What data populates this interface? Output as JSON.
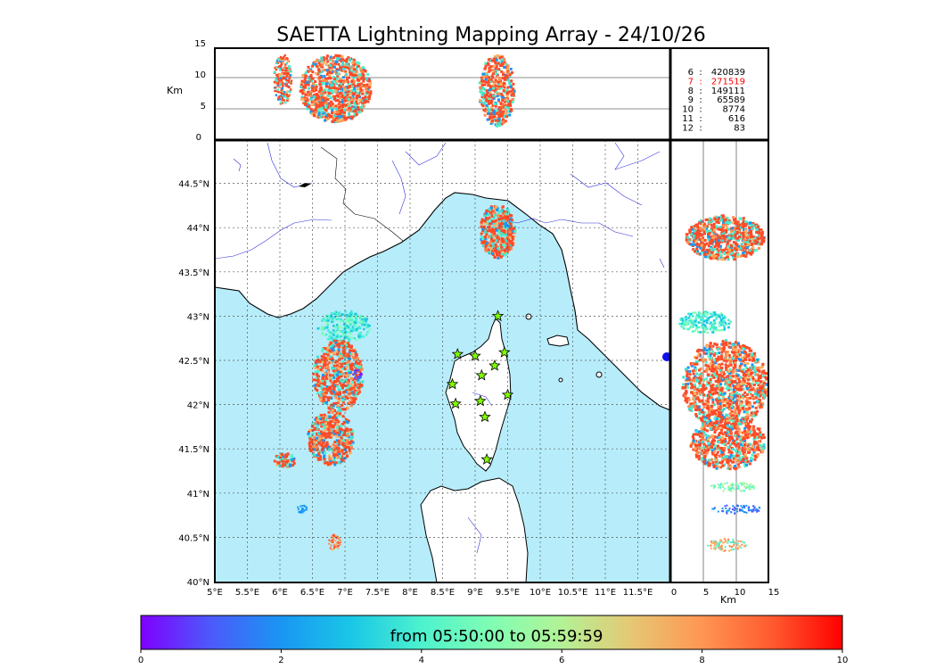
{
  "title": "SAETTA Lightning Mapping Array - 24/10/26",
  "top_panel": {
    "ylabel": "Km",
    "yticks": [
      "15",
      "10",
      "5",
      "0"
    ],
    "gridlines_km": [
      10,
      5
    ]
  },
  "right_panel": {
    "xlabel": "Km",
    "xticks": [
      "0",
      "5",
      "10",
      "15"
    ]
  },
  "station_counts": [
    {
      "stations": "6",
      "count": "420839",
      "color": "#000000"
    },
    {
      "stations": "7",
      "count": "271519",
      "color": "#ff0000"
    },
    {
      "stations": "8",
      "count": "149111",
      "color": "#000000"
    },
    {
      "stations": "9",
      "count": "65589",
      "color": "#000000"
    },
    {
      "stations": "10",
      "count": "8774",
      "color": "#000000"
    },
    {
      "stations": "11",
      "count": "616",
      "color": "#000000"
    },
    {
      "stations": "12",
      "count": "83",
      "color": "#000000"
    }
  ],
  "map": {
    "lon_ticks": [
      "5°E",
      "5.5°E",
      "6°E",
      "6.5°E",
      "7°E",
      "7.5°E",
      "8°E",
      "8.5°E",
      "9°E",
      "9.5°E",
      "10°E",
      "10.5°E",
      "11°E",
      "11.5°E"
    ],
    "lat_ticks": [
      "44.5°N",
      "44°N",
      "43.5°N",
      "43°N",
      "42.5°N",
      "42°N",
      "41.5°N",
      "41°N",
      "40.5°N",
      "40°N"
    ],
    "sea_color": "#b7edfb",
    "land_color": "#ffffff",
    "stations": [
      {
        "lon": 9.35,
        "lat": 43.0
      },
      {
        "lon": 8.73,
        "lat": 42.57
      },
      {
        "lon": 9.0,
        "lat": 42.55
      },
      {
        "lon": 9.45,
        "lat": 42.59
      },
      {
        "lon": 9.3,
        "lat": 42.44
      },
      {
        "lon": 9.1,
        "lat": 42.33
      },
      {
        "lon": 8.65,
        "lat": 42.23
      },
      {
        "lon": 9.5,
        "lat": 42.11
      },
      {
        "lon": 9.08,
        "lat": 42.04
      },
      {
        "lon": 8.7,
        "lat": 42.01
      },
      {
        "lon": 9.15,
        "lat": 41.86
      },
      {
        "lon": 9.18,
        "lat": 41.38
      }
    ]
  },
  "colorbar": {
    "label": "from 05:50:00 to 05:59:59",
    "ticks": [
      "0",
      "2",
      "4",
      "6",
      "8",
      "10"
    ],
    "colors": [
      "#7f00ff",
      "#4c5afa",
      "#1996f3",
      "#1ac7e6",
      "#4df2ce",
      "#80feb3",
      "#b3f296",
      "#e6c774",
      "#ff9652",
      "#ff5a2f",
      "#ff0000"
    ]
  }
}
